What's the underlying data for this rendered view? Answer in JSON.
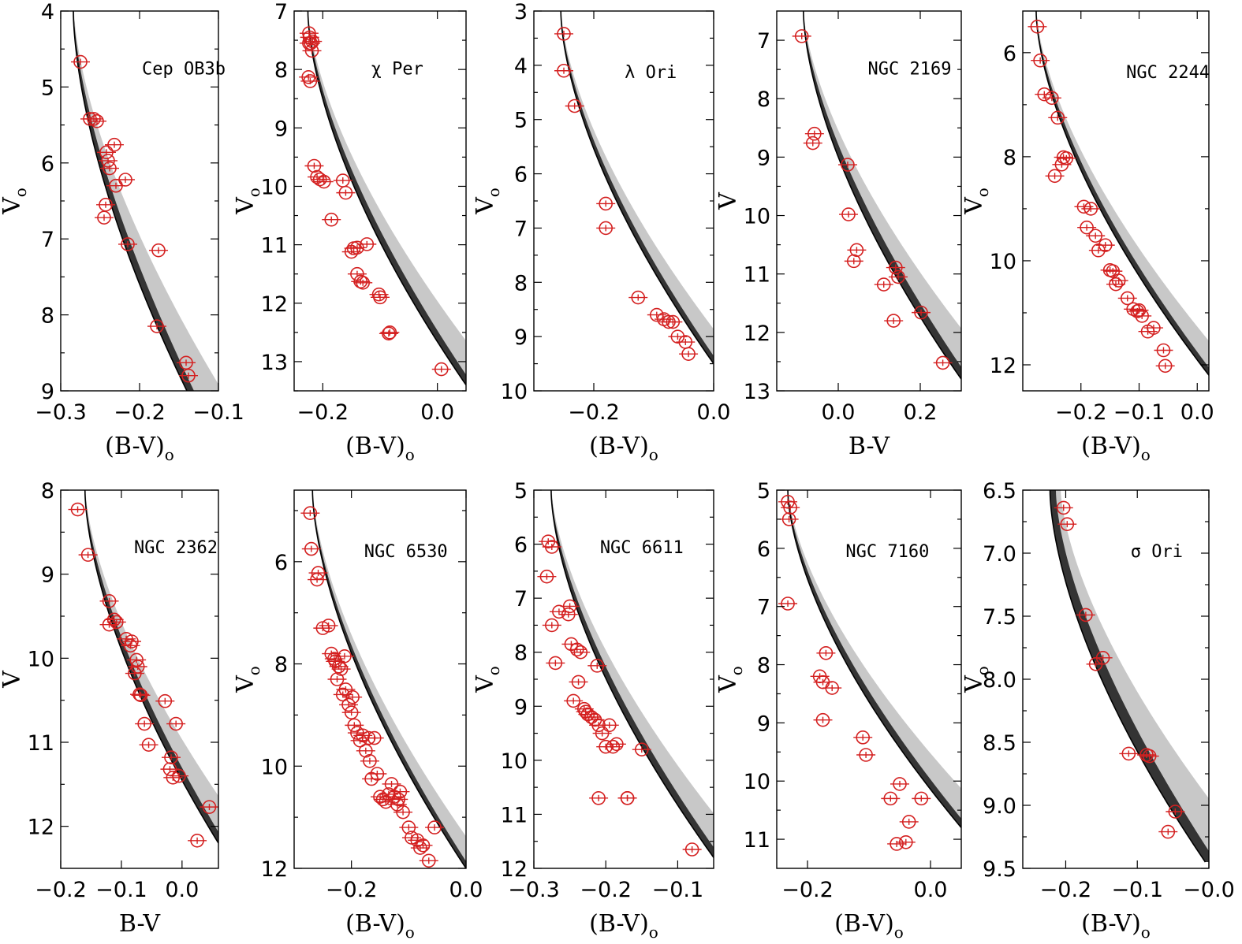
{
  "chart_data": [
    {
      "type": "scatter",
      "title": "Cep OB3b",
      "xlabel": "(B-V)",
      "xlabel_sub": "o",
      "ylabel": "V",
      "ylabel_sub": "o",
      "xlim": [
        -0.3,
        -0.1
      ],
      "ylim": [
        9,
        4
      ],
      "xticks": [
        -0.3,
        -0.2,
        -0.1
      ],
      "xtick_labels": [
        "−0.3",
        "−0.2",
        "−0.1"
      ],
      "yticks": [
        4,
        5,
        6,
        7,
        8,
        9
      ],
      "ytick_labels": [
        "4",
        "5",
        "6",
        "7",
        "8",
        "9"
      ],
      "ymin_ticks": [
        4.5,
        5.5,
        6.5,
        7.5,
        8.5
      ],
      "series": [
        {
          "x": [
            -0.275,
            -0.263,
            -0.258,
            -0.254,
            -0.242,
            -0.24,
            -0.238,
            -0.232,
            -0.23,
            -0.243,
            -0.245,
            -0.218,
            -0.215,
            -0.176,
            -0.178,
            -0.141,
            -0.138
          ],
          "y": [
            4.67,
            5.42,
            5.42,
            5.45,
            5.86,
            5.97,
            6.07,
            5.76,
            6.3,
            6.55,
            6.72,
            6.22,
            7.07,
            7.15,
            8.15,
            8.63,
            8.8
          ]
        }
      ]
    },
    {
      "type": "scatter",
      "title": "χ Per",
      "xlabel": "(B-V)",
      "xlabel_sub": "o",
      "ylabel": "V",
      "ylabel_sub": "o",
      "xlim": [
        -0.25,
        0.05
      ],
      "ylim": [
        13.5,
        7
      ],
      "xticks": [
        -0.2,
        0.0
      ],
      "xtick_labels": [
        "−0.2",
        "0.0"
      ],
      "yticks": [
        7,
        8,
        9,
        10,
        11,
        12,
        13
      ],
      "ytick_labels": [
        "7",
        "8",
        "9",
        "10",
        "11",
        "12",
        "13"
      ],
      "ymin_ticks": [
        7.5,
        8.5,
        9.5,
        10.5,
        11.5,
        12.5,
        13.5
      ],
      "series": [
        {
          "x": [
            -0.224,
            -0.223,
            -0.221,
            -0.219,
            -0.224,
            -0.218,
            -0.225,
            -0.222,
            -0.215,
            -0.21,
            -0.205,
            -0.198,
            -0.165,
            -0.16,
            -0.185,
            -0.15,
            -0.146,
            -0.14,
            -0.123,
            -0.14,
            -0.134,
            -0.13,
            -0.102,
            -0.1,
            -0.083,
            -0.085,
            0.007
          ],
          "y": [
            7.38,
            7.45,
            7.55,
            7.68,
            7.55,
            7.52,
            8.13,
            8.2,
            9.65,
            9.84,
            9.88,
            9.92,
            9.9,
            10.11,
            10.57,
            11.12,
            11.06,
            11.05,
            10.99,
            11.5,
            11.63,
            11.65,
            11.85,
            11.9,
            12.5,
            12.52,
            13.13
          ]
        }
      ]
    },
    {
      "type": "scatter",
      "title": "λ Ori",
      "xlabel": "(B-V)",
      "xlabel_sub": "o",
      "ylabel": "V",
      "ylabel_sub": "o",
      "xlim": [
        -0.3,
        0.0
      ],
      "ylim": [
        10,
        3
      ],
      "xticks": [
        -0.2,
        0.0
      ],
      "xtick_labels": [
        "−0.2",
        "0.0"
      ],
      "yticks": [
        3,
        4,
        5,
        6,
        7,
        8,
        9,
        10
      ],
      "ytick_labels": [
        "3",
        "4",
        "5",
        "6",
        "7",
        "8",
        "9",
        "10"
      ],
      "ymin_ticks": [
        3.5,
        4.5,
        5.5,
        6.5,
        7.5,
        8.5,
        9.5
      ],
      "series": [
        {
          "x": [
            -0.25,
            -0.25,
            -0.232,
            -0.18,
            -0.18,
            -0.126,
            -0.095,
            -0.083,
            -0.075,
            -0.068,
            -0.06,
            -0.047,
            -0.042
          ],
          "y": [
            3.42,
            4.1,
            4.75,
            6.55,
            7.0,
            8.28,
            8.6,
            8.68,
            8.73,
            8.73,
            9.0,
            9.1,
            9.32
          ]
        }
      ]
    },
    {
      "type": "scatter",
      "title": "NGC 2169",
      "xlabel": "B-V",
      "xlabel_sub": "",
      "ylabel": "V",
      "ylabel_sub": "",
      "xlim": [
        -0.15,
        0.3
      ],
      "ylim": [
        13,
        6.5
      ],
      "xticks": [
        0.0,
        0.2
      ],
      "xtick_labels": [
        "0.0",
        "0.2"
      ],
      "yticks": [
        7,
        8,
        9,
        10,
        11,
        12,
        13
      ],
      "ytick_labels": [
        "7",
        "8",
        "9",
        "10",
        "11",
        "12",
        "13"
      ],
      "ymin_ticks": [
        7.5,
        8.5,
        9.5,
        10.5,
        11.5,
        12.5
      ],
      "series": [
        {
          "x": [
            -0.089,
            -0.058,
            -0.062,
            0.023,
            0.025,
            0.038,
            0.045,
            0.111,
            0.14,
            0.146,
            0.135,
            0.202,
            0.255
          ],
          "y": [
            6.93,
            8.6,
            8.76,
            9.13,
            9.98,
            10.78,
            10.59,
            11.18,
            10.89,
            11.05,
            11.8,
            11.66,
            12.52
          ]
        }
      ]
    },
    {
      "type": "scatter",
      "title": "NGC 2244",
      "xlabel": "(B-V)",
      "xlabel_sub": "o",
      "ylabel": "V",
      "ylabel_sub": "o",
      "xlim": [
        -0.3,
        0.02
      ],
      "ylim": [
        12.5,
        5.2
      ],
      "xticks": [
        -0.2,
        -0.1,
        0.0
      ],
      "xtick_labels": [
        "−0.2",
        "−0.1",
        "0.0"
      ],
      "yticks": [
        6,
        8,
        10,
        12
      ],
      "ytick_labels": [
        "6",
        "8",
        "10",
        "12"
      ],
      "ymin_ticks": [
        7,
        9,
        11
      ],
      "series": [
        {
          "x": [
            -0.275,
            -0.27,
            -0.263,
            -0.25,
            -0.24,
            -0.245,
            -0.23,
            -0.225,
            -0.233,
            -0.195,
            -0.183,
            -0.19,
            -0.175,
            -0.17,
            -0.158,
            -0.15,
            -0.145,
            -0.14,
            -0.135,
            -0.12,
            -0.11,
            -0.103,
            -0.095,
            -0.1,
            -0.085,
            -0.075,
            -0.058,
            -0.055
          ],
          "y": [
            5.5,
            6.15,
            6.8,
            6.87,
            7.25,
            8.37,
            8.01,
            8.03,
            8.15,
            8.96,
            9.0,
            9.36,
            9.52,
            9.8,
            9.7,
            10.18,
            10.2,
            10.45,
            10.38,
            10.72,
            10.93,
            10.97,
            11.06,
            10.95,
            11.36,
            11.29,
            11.72,
            12.02
          ]
        }
      ]
    },
    {
      "type": "scatter",
      "title": "NGC 2362",
      "xlabel": "B-V",
      "xlabel_sub": "",
      "ylabel": "V",
      "ylabel_sub": "",
      "xlim": [
        -0.2,
        0.06
      ],
      "ylim": [
        12.5,
        8
      ],
      "xticks": [
        -0.2,
        -0.1,
        0.0
      ],
      "xtick_labels": [
        "−0.2",
        "−0.1",
        "0.0"
      ],
      "yticks": [
        8,
        9,
        10,
        11,
        12
      ],
      "ytick_labels": [
        "8",
        "9",
        "10",
        "11",
        "12"
      ],
      "ymin_ticks": [
        8.5,
        9.5,
        10.5,
        11.5
      ],
      "series": [
        {
          "x": [
            -0.172,
            -0.155,
            -0.12,
            -0.112,
            -0.108,
            -0.12,
            -0.092,
            -0.083,
            -0.085,
            -0.075,
            -0.073,
            -0.078,
            -0.07,
            -0.068,
            -0.062,
            -0.055,
            -0.028,
            -0.01,
            -0.018,
            -0.02,
            -0.015,
            -0.005,
            0.025,
            0.045
          ],
          "y": [
            8.23,
            8.77,
            9.32,
            9.54,
            9.57,
            9.6,
            9.77,
            9.8,
            9.85,
            10.02,
            10.1,
            10.18,
            10.43,
            10.44,
            10.78,
            11.03,
            10.51,
            10.78,
            11.18,
            11.32,
            11.42,
            11.4,
            12.17,
            11.77
          ]
        }
      ]
    },
    {
      "type": "scatter",
      "title": "NGC 6530",
      "xlabel": "(B-V)",
      "xlabel_sub": "o",
      "ylabel": "V",
      "ylabel_sub": "o",
      "xlim": [
        -0.3,
        0.0
      ],
      "ylim": [
        12,
        4.6
      ],
      "xticks": [
        -0.2,
        0.0
      ],
      "xtick_labels": [
        "−0.2",
        "0.0"
      ],
      "yticks": [
        6,
        8,
        10,
        12
      ],
      "ytick_labels": [
        "6",
        "8",
        "10",
        "12"
      ],
      "ymin_ticks": [
        5,
        7,
        9,
        11
      ],
      "series": [
        {
          "x": [
            -0.272,
            -0.27,
            -0.26,
            -0.258,
            -0.25,
            -0.24,
            -0.235,
            -0.23,
            -0.228,
            -0.225,
            -0.222,
            -0.218,
            -0.215,
            -0.212,
            -0.21,
            -0.205,
            -0.2,
            -0.198,
            -0.195,
            -0.19,
            -0.185,
            -0.18,
            -0.175,
            -0.17,
            -0.168,
            -0.165,
            -0.16,
            -0.155,
            -0.15,
            -0.145,
            -0.14,
            -0.135,
            -0.13,
            -0.125,
            -0.12,
            -0.118,
            -0.115,
            -0.11,
            -0.1,
            -0.095,
            -0.085,
            -0.08,
            -0.075,
            -0.065,
            -0.055
          ],
          "y": [
            5.05,
            5.75,
            6.35,
            6.22,
            7.3,
            7.25,
            7.8,
            7.9,
            7.95,
            8.3,
            8.05,
            8.1,
            8.6,
            7.85,
            8.5,
            8.8,
            8.95,
            8.65,
            9.2,
            9.35,
            9.5,
            9.4,
            9.7,
            9.45,
            9.9,
            10.25,
            9.45,
            10.15,
            10.6,
            10.65,
            10.7,
            10.55,
            10.35,
            10.6,
            10.75,
            10.65,
            10.5,
            10.9,
            11.2,
            11.4,
            11.45,
            11.6,
            11.55,
            11.85,
            11.2
          ]
        }
      ]
    },
    {
      "type": "scatter",
      "title": "NGC 6611",
      "xlabel": "(B-V)",
      "xlabel_sub": "o",
      "ylabel": "V",
      "ylabel_sub": "o",
      "xlim": [
        -0.3,
        -0.05
      ],
      "ylim": [
        12,
        5
      ],
      "xticks": [
        -0.3,
        -0.2,
        -0.1
      ],
      "xtick_labels": [
        "−0.3",
        "−0.2",
        "−0.1"
      ],
      "yticks": [
        5,
        6,
        7,
        8,
        9,
        10,
        11,
        12
      ],
      "ytick_labels": [
        "5",
        "6",
        "7",
        "8",
        "9",
        "10",
        "11",
        "12"
      ],
      "ymin_ticks": [
        5.5,
        6.5,
        7.5,
        8.5,
        9.5,
        10.5,
        11.5
      ],
      "series": [
        {
          "x": [
            -0.28,
            -0.275,
            -0.282,
            -0.275,
            -0.265,
            -0.27,
            -0.25,
            -0.252,
            -0.248,
            -0.24,
            -0.235,
            -0.245,
            -0.238,
            -0.23,
            -0.228,
            -0.225,
            -0.22,
            -0.215,
            -0.212,
            -0.21,
            -0.205,
            -0.2,
            -0.195,
            -0.19,
            -0.185,
            -0.17,
            -0.15,
            -0.21,
            -0.17,
            -0.08
          ],
          "y": [
            5.95,
            6.05,
            6.6,
            7.5,
            7.25,
            8.2,
            7.15,
            7.3,
            7.85,
            7.95,
            8.0,
            8.9,
            8.55,
            9.05,
            9.1,
            9.15,
            9.2,
            9.25,
            8.25,
            9.35,
            9.5,
            9.75,
            9.35,
            9.75,
            9.7,
            10.7,
            9.8,
            10.7,
            10.7,
            11.65
          ]
        }
      ]
    },
    {
      "type": "scatter",
      "title": "NGC 7160",
      "xlabel": "(B-V)",
      "xlabel_sub": "o",
      "ylabel": "V",
      "ylabel_sub": "o",
      "xlim": [
        -0.25,
        0.05
      ],
      "ylim": [
        11.5,
        5
      ],
      "xticks": [
        -0.2,
        0.0
      ],
      "xtick_labels": [
        "−0.2",
        "0.0"
      ],
      "yticks": [
        5,
        6,
        7,
        8,
        9,
        10,
        11
      ],
      "ytick_labels": [
        "5",
        "6",
        "7",
        "8",
        "9",
        "10",
        "11"
      ],
      "ymin_ticks": [
        5.5,
        6.5,
        7.5,
        8.5,
        9.5,
        10.5
      ],
      "series": [
        {
          "x": [
            -0.232,
            -0.228,
            -0.23,
            -0.232,
            -0.18,
            -0.17,
            -0.175,
            -0.16,
            -0.175,
            -0.11,
            -0.105,
            -0.065,
            -0.05,
            -0.04,
            -0.035,
            -0.015,
            -0.055
          ],
          "y": [
            5.2,
            5.3,
            5.5,
            6.95,
            8.2,
            7.8,
            8.3,
            8.4,
            8.95,
            9.25,
            9.55,
            10.3,
            10.05,
            11.05,
            10.7,
            10.3,
            11.08
          ]
        }
      ]
    },
    {
      "type": "scatter",
      "title": "σ Ori",
      "xlabel": "(B-V)",
      "xlabel_sub": "o",
      "ylabel": "V",
      "ylabel_sub": "o",
      "xlim": [
        -0.26,
        0.0
      ],
      "ylim": [
        9.5,
        6.5
      ],
      "xticks": [
        -0.2,
        -0.1,
        0.0
      ],
      "xtick_labels": [
        "−0.2",
        "−0.1",
        "−0.0"
      ],
      "yticks": [
        6.5,
        7.0,
        7.5,
        8.0,
        8.5,
        9.0,
        9.5
      ],
      "ytick_labels": [
        "6.5",
        "7.0",
        "7.5",
        "8.0",
        "8.5",
        "9.0",
        "9.5"
      ],
      "ymin_ticks": [
        6.75,
        7.25,
        7.75,
        8.25,
        8.75,
        9.25
      ],
      "series": [
        {
          "x": [
            -0.203,
            -0.198,
            -0.172,
            -0.158,
            -0.148,
            -0.112,
            -0.087,
            -0.083,
            -0.047,
            -0.057
          ],
          "y": [
            6.64,
            6.77,
            7.49,
            7.88,
            7.83,
            8.59,
            8.6,
            8.61,
            9.05,
            9.21
          ]
        }
      ]
    }
  ]
}
